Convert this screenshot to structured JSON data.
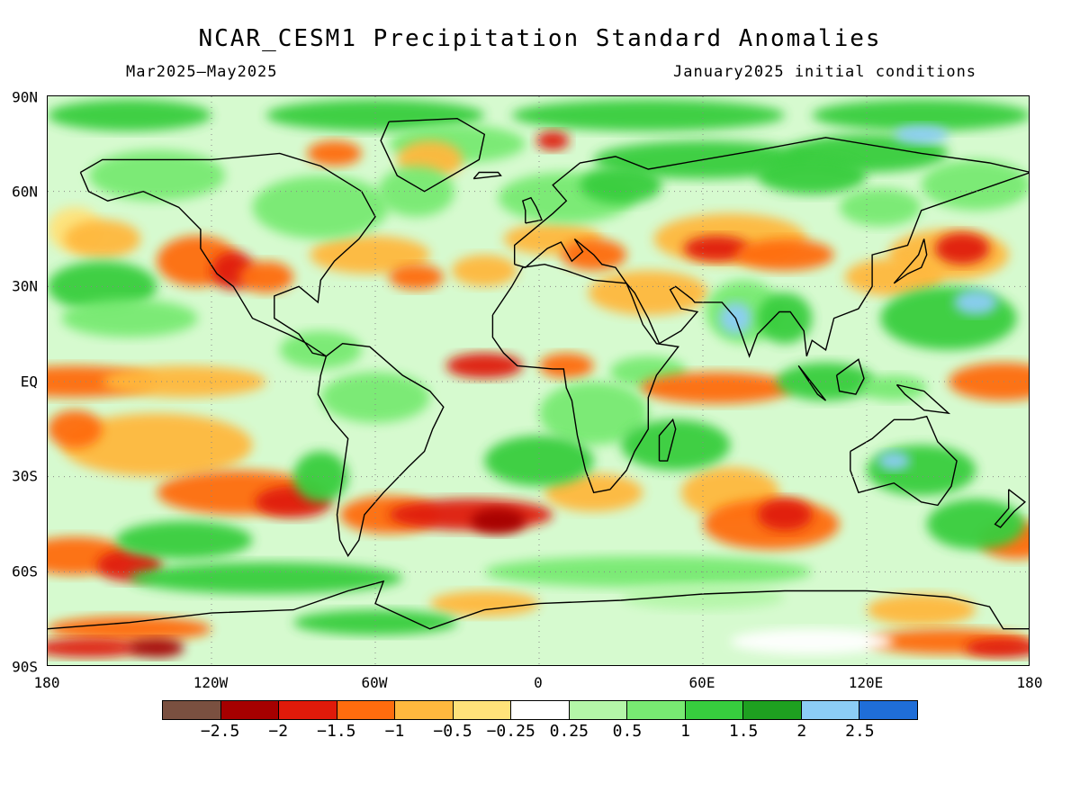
{
  "title": "NCAR_CESM1 Precipitation Standard Anomalies",
  "period": "Mar2025—May2025",
  "initial_conditions": "January2025 initial conditions",
  "lat_axis": [
    "90N",
    "60N",
    "30N",
    "EQ",
    "30S",
    "60S",
    "90S"
  ],
  "lon_axis": [
    "180",
    "120W",
    "60W",
    "0",
    "60E",
    "120E",
    "180"
  ],
  "colorbar": {
    "colors": [
      "#7a5040",
      "#a60000",
      "#e01a0a",
      "#ff6c0e",
      "#ffb83e",
      "#ffe27a",
      "#ffffff",
      "#b4f6a8",
      "#78ea72",
      "#37cd3e",
      "#1ea020",
      "#8ccdf5",
      "#1f6ed8"
    ],
    "labels": [
      "−2.5",
      "−2",
      "−1.5",
      "−1",
      "−0.5",
      "−0.25",
      "0.25",
      "0.5",
      "1",
      "1.5",
      "2",
      "2.5"
    ]
  },
  "legend_colors": {
    "strong_dry": "#a60000",
    "dry": "#ff6c0e",
    "neutral": "#ffffff",
    "wet": "#37cd3e",
    "strong_wet": "#1f6ed8"
  },
  "coastline_color": "#000000"
}
